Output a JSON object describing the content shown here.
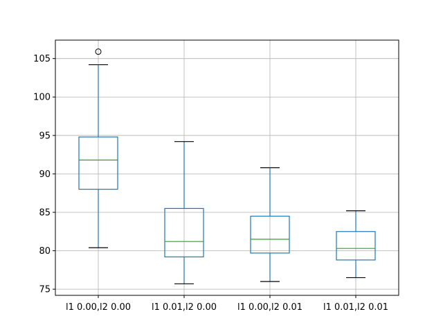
{
  "chart_data": {
    "type": "box",
    "categories": [
      "l1 0.00,l2 0.00",
      "l1 0.01,l2 0.00",
      "l1 0.00,l2 0.01",
      "l1 0.01,l2 0.01"
    ],
    "boxes": [
      {
        "whisker_low": 80.4,
        "q1": 88.0,
        "median": 91.8,
        "q3": 94.8,
        "whisker_high": 104.2,
        "outliers": [
          105.9
        ]
      },
      {
        "whisker_low": 75.7,
        "q1": 79.2,
        "median": 81.2,
        "q3": 85.5,
        "whisker_high": 94.2,
        "outliers": []
      },
      {
        "whisker_low": 76.0,
        "q1": 79.7,
        "median": 81.5,
        "q3": 84.5,
        "whisker_high": 90.8,
        "outliers": []
      },
      {
        "whisker_low": 76.5,
        "q1": 78.8,
        "median": 80.3,
        "q3": 82.5,
        "whisker_high": 85.2,
        "outliers": []
      }
    ],
    "y_ticks": [
      75,
      80,
      85,
      90,
      95,
      100,
      105
    ],
    "ylim": [
      74.2,
      107.4
    ],
    "grid": true,
    "title": "",
    "xlabel": "",
    "ylabel": "",
    "colors": {
      "box": "#1f77b4",
      "median": "#2ca02c",
      "whisker": "#1f77b4",
      "cap": "#000000",
      "grid": "#b0b0b0",
      "outlier": "#000000"
    }
  }
}
